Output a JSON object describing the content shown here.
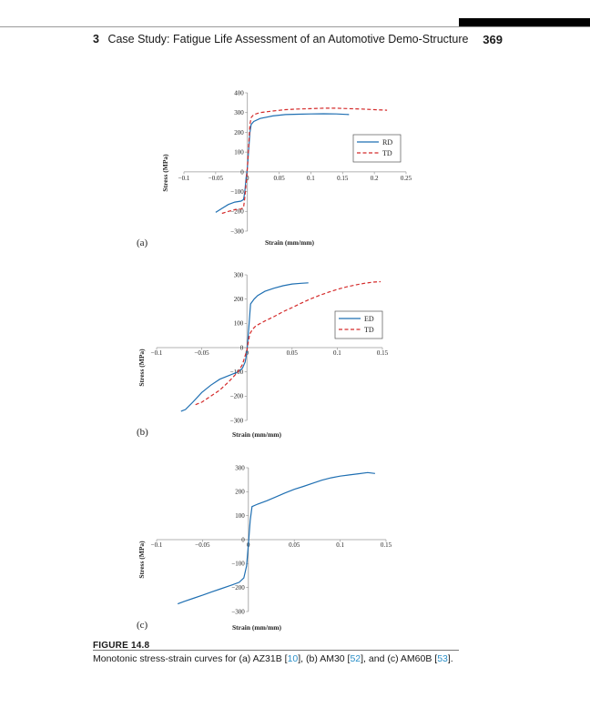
{
  "header": {
    "chapter_number": "3",
    "chapter_title": "Case Study: Fatigue Life Assessment of an Automotive Demo-Structure",
    "page_number": "369"
  },
  "figure": {
    "label": "FIGURE 14.8",
    "caption_parts": [
      "Monotonic stress-strain curves for (a) AZ31B [",
      "10",
      "], (b) AM30 [",
      "52",
      "], and (c) AM60B [",
      "53",
      "]."
    ]
  },
  "chart_data": [
    {
      "type": "line",
      "panel_label": "(a)",
      "xlabel": "Strain (mm/mm)",
      "ylabel": "Stress (MPa)",
      "xlim": [
        -0.1,
        0.25
      ],
      "ylim": [
        -300,
        400
      ],
      "x_ticks": [
        -0.1,
        -0.05,
        0,
        0.05,
        0.1,
        0.15,
        0.2,
        0.25
      ],
      "x_tick_labels": [
        "−0.1",
        "−0.05",
        "0",
        "0.05",
        "0.1",
        "0.15",
        "0.2",
        "0.25"
      ],
      "y_ticks": [
        400,
        300,
        200,
        100,
        0,
        -100,
        -200,
        -300
      ],
      "y_tick_labels": [
        "400",
        "300",
        "200",
        "100",
        "0",
        "−100",
        "−200",
        "−300"
      ],
      "legend_position": "center-right",
      "series": [
        {
          "name": "RD",
          "color": "#1f6fb2",
          "style": "solid",
          "x": [
            -0.05,
            -0.04,
            -0.03,
            -0.02,
            -0.01,
            -0.006,
            -0.004,
            -0.002,
            0,
            0.002,
            0.004,
            0.006,
            0.01,
            0.02,
            0.04,
            0.06,
            0.08,
            0.1,
            0.12,
            0.14,
            0.16
          ],
          "y": [
            -205,
            -185,
            -165,
            -153,
            -148,
            -140,
            -100,
            -30,
            20,
            110,
            200,
            240,
            255,
            270,
            283,
            290,
            292,
            293,
            294,
            293,
            290
          ]
        },
        {
          "name": "TD",
          "color": "#d42a2a",
          "style": "dashed",
          "x": [
            -0.04,
            -0.03,
            -0.02,
            -0.01,
            -0.006,
            -0.004,
            -0.002,
            0,
            0.002,
            0.004,
            0.006,
            0.01,
            0.02,
            0.04,
            0.06,
            0.08,
            0.1,
            0.12,
            0.14,
            0.16,
            0.18,
            0.2,
            0.22
          ],
          "y": [
            -210,
            -200,
            -192,
            -188,
            -180,
            -130,
            -60,
            20,
            130,
            240,
            275,
            290,
            300,
            308,
            315,
            318,
            320,
            322,
            322,
            320,
            318,
            315,
            312
          ]
        }
      ]
    },
    {
      "type": "line",
      "panel_label": "(b)",
      "xlabel": "Strain (mm/mm)",
      "ylabel": "Stress (MPa)",
      "xlim": [
        -0.1,
        0.15
      ],
      "ylim": [
        -300,
        300
      ],
      "x_ticks": [
        -0.1,
        -0.05,
        0,
        0.05,
        0.1,
        0.15
      ],
      "x_tick_labels": [
        "−0.1",
        "−0.05",
        "0",
        "0.05",
        "0.1",
        "0.15"
      ],
      "y_ticks": [
        300,
        200,
        100,
        0,
        -100,
        -200,
        -300
      ],
      "y_tick_labels": [
        "300",
        "200",
        "100",
        "0",
        "−100",
        "−200",
        "−300"
      ],
      "legend_position": "center-right",
      "series": [
        {
          "name": "ED",
          "color": "#1f6fb2",
          "style": "solid",
          "x": [
            -0.073,
            -0.068,
            -0.06,
            -0.05,
            -0.04,
            -0.03,
            -0.02,
            -0.01,
            -0.005,
            -0.002,
            0,
            0.002,
            0.004,
            0.008,
            0.012,
            0.02,
            0.03,
            0.04,
            0.05,
            0.06,
            0.068
          ],
          "y": [
            -262,
            -255,
            -225,
            -185,
            -155,
            -130,
            -115,
            -100,
            -85,
            -60,
            -20,
            80,
            180,
            200,
            215,
            232,
            245,
            255,
            262,
            265,
            267
          ]
        },
        {
          "name": "TD",
          "color": "#d42a2a",
          "style": "dashed",
          "x": [
            -0.057,
            -0.05,
            -0.04,
            -0.03,
            -0.02,
            -0.01,
            -0.005,
            0,
            0.003,
            0.006,
            0.01,
            0.02,
            0.03,
            0.04,
            0.05,
            0.06,
            0.07,
            0.08,
            0.09,
            0.1,
            0.11,
            0.12,
            0.13,
            0.14,
            0.148
          ],
          "y": [
            -235,
            -225,
            -200,
            -175,
            -140,
            -100,
            -70,
            -10,
            55,
            75,
            90,
            110,
            128,
            148,
            165,
            183,
            200,
            215,
            228,
            240,
            250,
            258,
            265,
            270,
            272
          ]
        }
      ]
    },
    {
      "type": "line",
      "panel_label": "(c)",
      "xlabel": "Strain (mm/mm)",
      "ylabel": "Stress (MPa)",
      "xlim": [
        -0.1,
        0.15
      ],
      "ylim": [
        -300,
        300
      ],
      "x_ticks": [
        -0.1,
        -0.05,
        0,
        0.05,
        0.1,
        0.15
      ],
      "x_tick_labels": [
        "−0.1",
        "−0.05",
        "0",
        "0.05",
        "0.1",
        "0.15"
      ],
      "y_ticks": [
        300,
        200,
        100,
        0,
        -100,
        -200,
        -300
      ],
      "y_tick_labels": [
        "300",
        "200",
        "100",
        "0",
        "−100",
        "−200",
        "−300"
      ],
      "legend_position": "none",
      "series": [
        {
          "name": "",
          "color": "#1f6fb2",
          "style": "solid",
          "x": [
            -0.077,
            -0.07,
            -0.06,
            -0.05,
            -0.04,
            -0.03,
            -0.02,
            -0.01,
            -0.005,
            -0.002,
            0,
            0.002,
            0.004,
            0.01,
            0.02,
            0.03,
            0.04,
            0.05,
            0.06,
            0.07,
            0.08,
            0.09,
            0.1,
            0.11,
            0.12,
            0.13,
            0.138
          ],
          "y": [
            -268,
            -258,
            -245,
            -232,
            -218,
            -205,
            -192,
            -178,
            -160,
            -110,
            -20,
            80,
            138,
            148,
            162,
            178,
            195,
            210,
            222,
            235,
            248,
            258,
            265,
            270,
            275,
            280,
            276
          ]
        }
      ]
    }
  ]
}
